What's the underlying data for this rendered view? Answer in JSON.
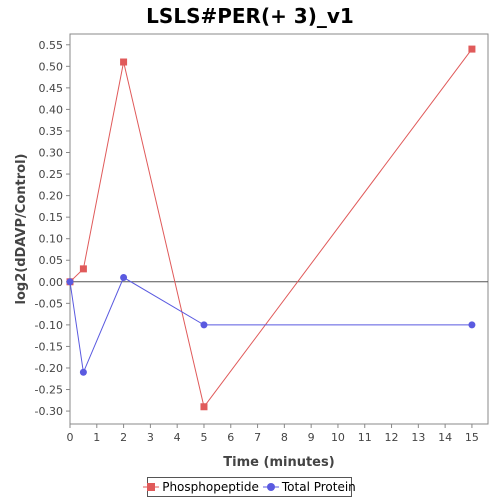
{
  "chart_data": {
    "type": "line",
    "title": "LSLS#PER(+ 3)_v1",
    "xlabel": "Time (minutes)",
    "ylabel": "log2(dDAVP/Control)",
    "xlim": [
      0,
      15.6
    ],
    "ylim": [
      -0.33,
      0.575
    ],
    "x_ticks": [
      0,
      1,
      2,
      3,
      4,
      5,
      6,
      7,
      8,
      9,
      10,
      11,
      12,
      13,
      14,
      15
    ],
    "x_tick_labels": [
      "0",
      "1",
      "2",
      "3",
      "4",
      "5",
      "6",
      "7",
      "8",
      "9",
      "10",
      "11",
      "12",
      "13",
      "14",
      "15"
    ],
    "y_ticks": [
      -0.3,
      -0.25,
      -0.2,
      -0.15,
      -0.1,
      -0.05,
      0.0,
      0.05,
      0.1,
      0.15,
      0.2,
      0.25,
      0.3,
      0.35,
      0.4,
      0.45,
      0.5,
      0.55
    ],
    "y_tick_labels": [
      "-0.30",
      "-0.25",
      "-0.20",
      "-0.15",
      "-0.10",
      "-0.05",
      "0.00",
      "0.05",
      "0.10",
      "0.15",
      "0.20",
      "0.25",
      "0.30",
      "0.35",
      "0.40",
      "0.45",
      "0.50",
      "0.55"
    ],
    "grid": false,
    "zero_line": true,
    "legend_position": "bottom",
    "series": [
      {
        "name": "Phosphopeptide",
        "color": "#e05a5a",
        "marker": "square",
        "x": [
          0,
          0.5,
          2,
          5,
          15
        ],
        "values": [
          0.0,
          0.03,
          0.51,
          -0.29,
          0.54
        ]
      },
      {
        "name": "Total Protein",
        "color": "#5a5ae0",
        "marker": "circle",
        "x": [
          0,
          0.5,
          2,
          5,
          15
        ],
        "values": [
          0.0,
          -0.21,
          0.01,
          -0.1,
          -0.1
        ]
      }
    ]
  }
}
